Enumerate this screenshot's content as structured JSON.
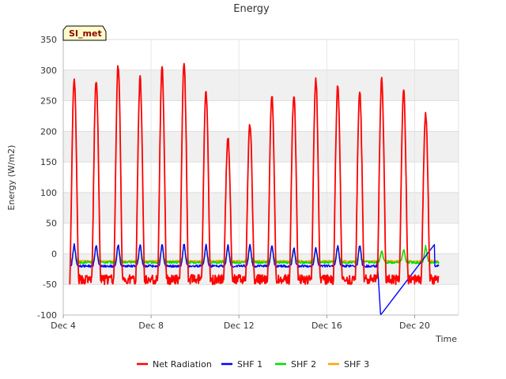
{
  "chart_data": {
    "type": "line",
    "title": "Energy",
    "xlabel": "Time",
    "ylabel": "Energy (W/m2)",
    "site_badge": "SI_met",
    "xlim": [
      4.0,
      22.0
    ],
    "ylim": [
      -100,
      350
    ],
    "x_ticks": [
      {
        "value": 4,
        "label": "Dec 4"
      },
      {
        "value": 8,
        "label": "Dec 8"
      },
      {
        "value": 12,
        "label": "Dec 12"
      },
      {
        "value": 16,
        "label": "Dec 16"
      },
      {
        "value": 20,
        "label": "Dec 20"
      }
    ],
    "y_ticks": [
      -100,
      -50,
      0,
      50,
      100,
      150,
      200,
      250,
      300,
      350
    ],
    "day_peaks": [
      {
        "day": 4,
        "rad_peak": 283,
        "shf_peak": 15
      },
      {
        "day": 5,
        "rad_peak": 283,
        "shf_peak": 15
      },
      {
        "day": 6,
        "rad_peak": 308,
        "shf_peak": 15
      },
      {
        "day": 7,
        "rad_peak": 286,
        "shf_peak": 15
      },
      {
        "day": 8,
        "rad_peak": 302,
        "shf_peak": 15
      },
      {
        "day": 9,
        "rad_peak": 313,
        "shf_peak": 16
      },
      {
        "day": 10,
        "rad_peak": 265,
        "shf_peak": 14
      },
      {
        "day": 11,
        "rad_peak": 190,
        "shf_peak": 14
      },
      {
        "day": 12,
        "rad_peak": 212,
        "shf_peak": 14
      },
      {
        "day": 13,
        "rad_peak": 257,
        "shf_peak": 14
      },
      {
        "day": 14,
        "rad_peak": 260,
        "shf_peak": 10
      },
      {
        "day": 15,
        "rad_peak": 286,
        "shf_peak": 10
      },
      {
        "day": 16,
        "rad_peak": 275,
        "shf_peak": 14
      },
      {
        "day": 17,
        "rad_peak": 262,
        "shf_peak": 14
      },
      {
        "day": 18,
        "rad_peak": 286,
        "shf_peak": 8
      },
      {
        "day": 19,
        "rad_peak": 265,
        "shf_peak": 10
      },
      {
        "day": 20,
        "rad_peak": 228,
        "shf_peak": 15
      }
    ],
    "night_values": {
      "net_radiation": -42,
      "shf_1": -20,
      "shf_2": -14,
      "shf_3": -12
    },
    "shf1_gap": {
      "start": [
        18.3,
        -12
      ],
      "bottom": [
        18.45,
        -100
      ],
      "end": [
        20.9,
        15
      ]
    },
    "series": [
      {
        "name": "Net Radiation",
        "color": "#ff0000"
      },
      {
        "name": "SHF 1",
        "color": "#0000ff"
      },
      {
        "name": "SHF 2",
        "color": "#00dd00"
      },
      {
        "name": "SHF 3",
        "color": "#ffa500"
      }
    ],
    "legend_position": "bottom",
    "band_fill": "#f0f0f0",
    "badge_fill": "#ffffcc"
  }
}
